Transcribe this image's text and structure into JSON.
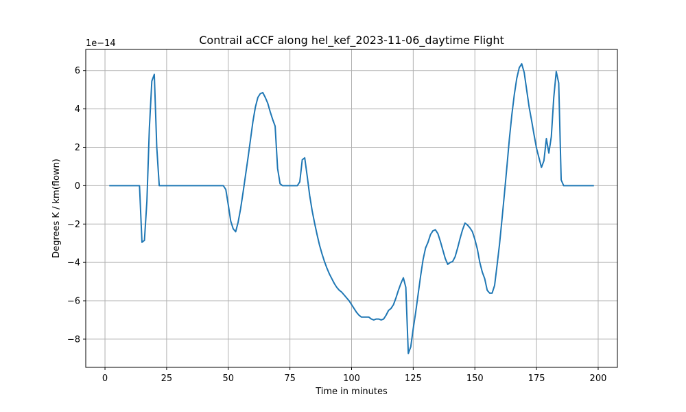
{
  "chart_data": {
    "type": "line",
    "title": "Contrail aCCF along hel_kef_2023-11-06_daytime Flight",
    "xlabel": "Time in minutes",
    "ylabel": "Degrees K / km(flown)",
    "y_offset_label": "1e−14",
    "xlim": [
      -7.8,
      207.8
    ],
    "ylim": [
      -9.47,
      7.1
    ],
    "x_ticks": [
      0,
      25,
      50,
      75,
      100,
      125,
      150,
      175,
      200
    ],
    "x_tick_labels": [
      "0",
      "25",
      "50",
      "75",
      "100",
      "125",
      "150",
      "175",
      "200"
    ],
    "y_ticks": [
      -8,
      -6,
      -4,
      -2,
      0,
      2,
      4,
      6
    ],
    "y_tick_labels": [
      "−8",
      "−6",
      "−4",
      "−2",
      "0",
      "2",
      "4",
      "6"
    ],
    "grid": true,
    "line_color": "#1f77b4",
    "series": [
      {
        "x": [
          2,
          14,
          15,
          16,
          17,
          18,
          19,
          20,
          21,
          22,
          48,
          49,
          50,
          51,
          52,
          53,
          54,
          55,
          56,
          57,
          58,
          59,
          60,
          61,
          62,
          63,
          64,
          65,
          66,
          67,
          68,
          69,
          70,
          71,
          72,
          73,
          74,
          75,
          76,
          77,
          78,
          79,
          80,
          81,
          82,
          83,
          84,
          85,
          86,
          87,
          88,
          89,
          90,
          91,
          92,
          93,
          94,
          95,
          96,
          97,
          98,
          99,
          100,
          101,
          102,
          103,
          104,
          105,
          106,
          107,
          108,
          109,
          110,
          111,
          112,
          113,
          114,
          115,
          116,
          117,
          118,
          119,
          120,
          121,
          122,
          123,
          124,
          125,
          126,
          127,
          128,
          129,
          130,
          131,
          132,
          133,
          134,
          135,
          136,
          137,
          138,
          139,
          140,
          141,
          142,
          143,
          144,
          145,
          146,
          147,
          148,
          149,
          150,
          151,
          152,
          153,
          154,
          155,
          156,
          157,
          158,
          159,
          160,
          161,
          162,
          163,
          164,
          165,
          166,
          167,
          168,
          169,
          170,
          171,
          172,
          173,
          174,
          175,
          176,
          177,
          178,
          179,
          180,
          181,
          182,
          183,
          184,
          185,
          186,
          198
        ],
        "y": [
          0,
          0,
          -2.95,
          -2.85,
          -0.8,
          3.0,
          5.45,
          5.8,
          2.0,
          0,
          0,
          -0.2,
          -1.0,
          -1.85,
          -2.25,
          -2.4,
          -1.9,
          -1.2,
          -0.35,
          0.55,
          1.45,
          2.4,
          3.35,
          4.1,
          4.6,
          4.8,
          4.85,
          4.6,
          4.3,
          3.85,
          3.45,
          3.1,
          0.9,
          0.1,
          0,
          0,
          0,
          0,
          0,
          0,
          0,
          0.2,
          1.35,
          1.45,
          0.5,
          -0.5,
          -1.3,
          -1.95,
          -2.55,
          -3.1,
          -3.55,
          -3.95,
          -4.3,
          -4.6,
          -4.85,
          -5.1,
          -5.3,
          -5.45,
          -5.55,
          -5.7,
          -5.85,
          -6.0,
          -6.2,
          -6.4,
          -6.6,
          -6.75,
          -6.85,
          -6.85,
          -6.85,
          -6.85,
          -6.95,
          -7.0,
          -6.95,
          -6.95,
          -7.0,
          -6.95,
          -6.75,
          -6.5,
          -6.4,
          -6.2,
          -5.85,
          -5.45,
          -5.1,
          -4.8,
          -5.3,
          -8.75,
          -8.4,
          -7.45,
          -6.6,
          -5.65,
          -4.7,
          -3.85,
          -3.25,
          -2.95,
          -2.55,
          -2.35,
          -2.3,
          -2.5,
          -2.9,
          -3.35,
          -3.8,
          -4.1,
          -4.0,
          -3.95,
          -3.7,
          -3.25,
          -2.75,
          -2.3,
          -1.95,
          -2.05,
          -2.2,
          -2.4,
          -2.8,
          -3.3,
          -4.0,
          -4.5,
          -4.85,
          -5.45,
          -5.6,
          -5.6,
          -5.2,
          -4.15,
          -3.05,
          -1.75,
          -0.4,
          1.0,
          2.45,
          3.7,
          4.75,
          5.6,
          6.15,
          6.35,
          5.9,
          5.0,
          4.1,
          3.4,
          2.65,
          1.95,
          1.45,
          0.95,
          1.3,
          2.45,
          1.7,
          2.55,
          4.6,
          5.95,
          5.35,
          0.3,
          0,
          0
        ]
      }
    ]
  }
}
